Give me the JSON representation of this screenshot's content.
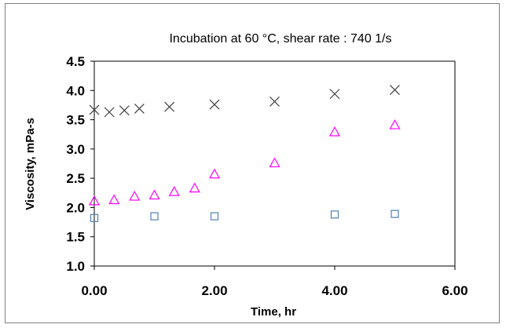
{
  "chart_data": {
    "type": "scatter",
    "title": "Incubation at 60 °C, shear rate : 740 1/s",
    "xlabel": "Time, hr",
    "ylabel": "Viscosity, mPa-s",
    "xlim": [
      0,
      6
    ],
    "ylim": [
      1.0,
      4.5
    ],
    "x_ticks": [
      "0.00",
      "2.00",
      "4.00",
      "6.00"
    ],
    "y_ticks": [
      "1.0",
      "1.5",
      "2.0",
      "2.5",
      "3.0",
      "3.5",
      "4.0",
      "4.5"
    ],
    "grid": false,
    "legend": "none",
    "series": [
      {
        "marker": "cross",
        "color": "#404040",
        "x": [
          0.0,
          0.25,
          0.5,
          0.75,
          1.25,
          2.0,
          3.0,
          4.0,
          5.0
        ],
        "y": [
          3.67,
          3.63,
          3.66,
          3.69,
          3.72,
          3.76,
          3.81,
          3.94,
          4.01
        ]
      },
      {
        "marker": "triangle",
        "color": "#ff00ff",
        "x": [
          0.0,
          0.33,
          0.67,
          1.0,
          1.33,
          1.67,
          2.0,
          3.0,
          4.0,
          5.0
        ],
        "y": [
          2.11,
          2.13,
          2.19,
          2.21,
          2.27,
          2.33,
          2.57,
          2.76,
          3.29,
          3.41
        ]
      },
      {
        "marker": "square",
        "color": "#4f81bd",
        "x": [
          0.0,
          1.0,
          2.0,
          4.0,
          5.0
        ],
        "y": [
          1.82,
          1.85,
          1.85,
          1.88,
          1.89
        ]
      }
    ]
  }
}
